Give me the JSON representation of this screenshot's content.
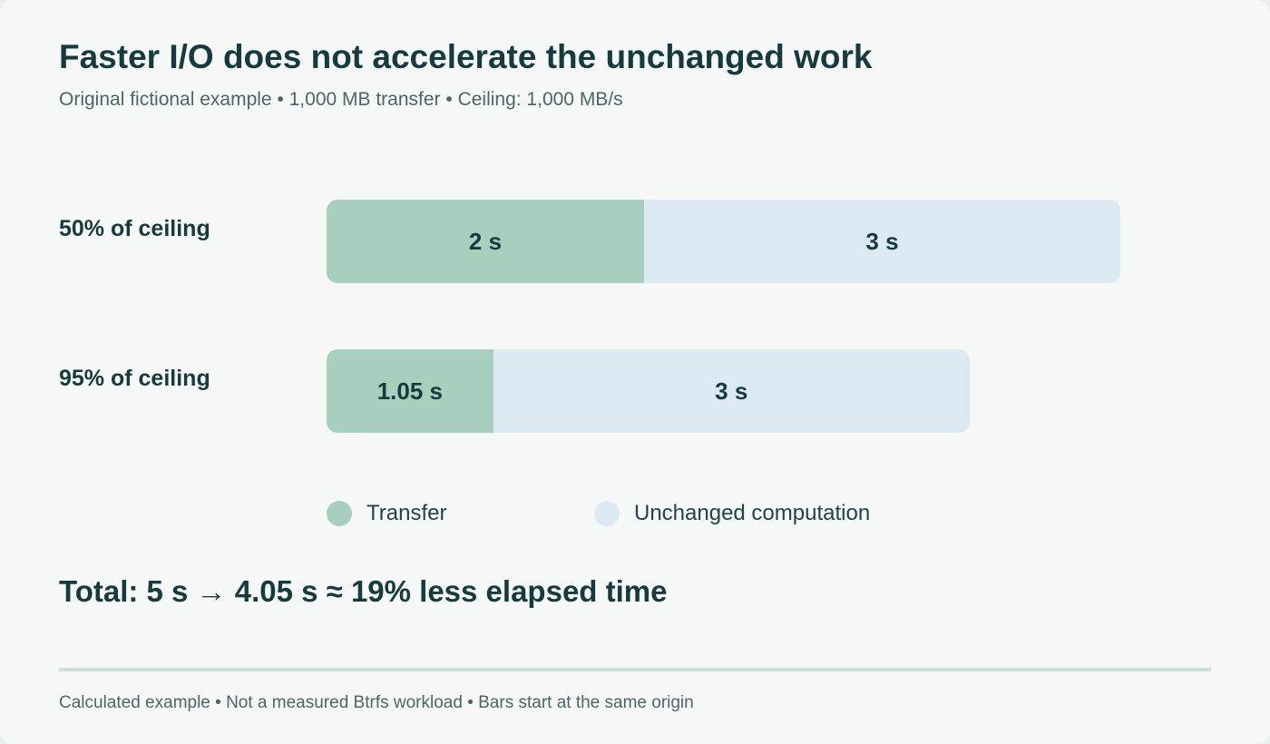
{
  "header": {
    "title": "Faster I/O does not accelerate the unchanged work",
    "subtitle": "Original fictional example • 1,000 MB transfer • Ceiling: 1,000 MB/s"
  },
  "colors": {
    "transfer": "#a8cfbe",
    "compute": "#dce9f2",
    "text_dark": "#173a3e"
  },
  "chart_data": {
    "type": "bar",
    "orientation": "horizontal",
    "stacked": true,
    "categories": [
      "50% of ceiling",
      "95% of ceiling"
    ],
    "series": [
      {
        "name": "Transfer",
        "values": [
          2,
          1.05
        ],
        "labels": [
          "2 s",
          "1.05 s"
        ]
      },
      {
        "name": "Unchanged computation",
        "values": [
          3,
          3
        ],
        "labels": [
          "3 s",
          "3 s"
        ]
      }
    ],
    "xlim": [
      0,
      5
    ],
    "grid": false,
    "legend_position": "bottom-left"
  },
  "legend": {
    "transfer_label": "Transfer",
    "compute_label": "Unchanged computation"
  },
  "summary": {
    "total": "Total: 5 s → 4.05 s ≈ 19% less elapsed time"
  },
  "footer": {
    "note": "Calculated example • Not a measured Btrfs workload • Bars start at the same origin"
  }
}
